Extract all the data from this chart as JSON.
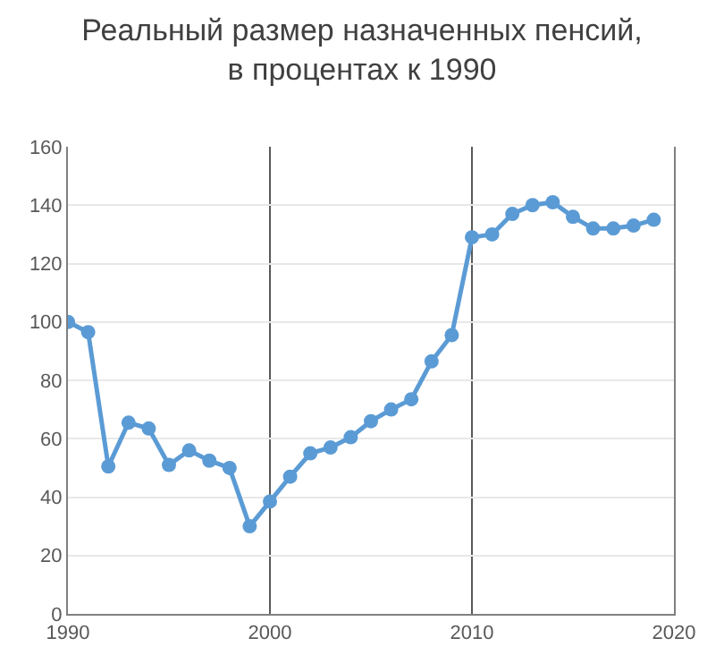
{
  "chart_data": {
    "type": "line",
    "title": "Реальный размер назначенных пенсий,\nв процентах к 1990",
    "x": [
      1990,
      1991,
      1992,
      1993,
      1994,
      1995,
      1996,
      1997,
      1998,
      1999,
      2000,
      2001,
      2002,
      2003,
      2004,
      2005,
      2006,
      2007,
      2008,
      2009,
      2010,
      2011,
      2012,
      2013,
      2014,
      2015,
      2016,
      2017,
      2018,
      2019
    ],
    "series": [
      {
        "color": "#5b9bd5",
        "values": [
          100,
          96.5,
          50.5,
          65.5,
          63.5,
          51,
          56,
          52.5,
          50,
          30,
          38.5,
          47,
          55,
          57,
          60.5,
          66,
          70,
          73.5,
          86.5,
          95.5,
          129,
          130,
          137,
          140,
          141,
          136,
          132,
          132,
          133,
          135
        ]
      }
    ],
    "xlim": [
      1990,
      2020
    ],
    "xticks": [
      1990,
      2000,
      2010,
      2020
    ],
    "ylim": [
      0,
      160
    ],
    "yticks": [
      0,
      20,
      40,
      60,
      80,
      100,
      120,
      140,
      160
    ],
    "grid": true,
    "marker": "circle",
    "line_style": "solid"
  }
}
